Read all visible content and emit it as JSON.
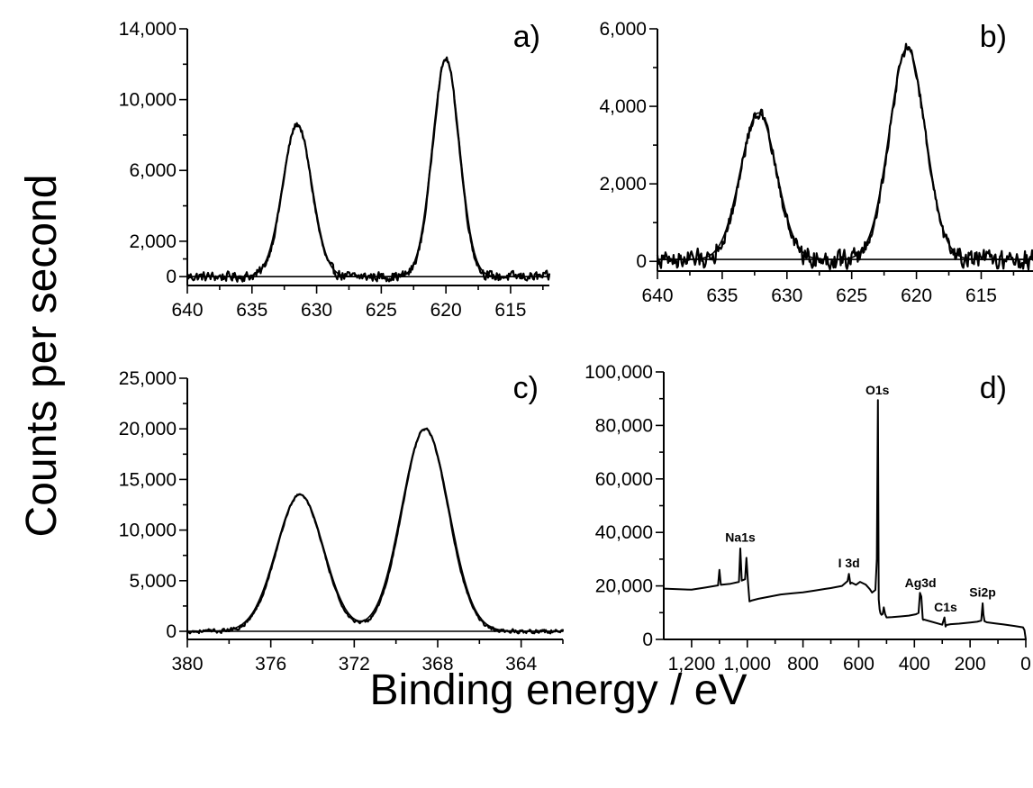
{
  "figure": {
    "ylabel": "Counts per second",
    "xlabel": "Binding energy / eV"
  },
  "colors": {
    "ink": "#000000",
    "background": "#ffffff"
  },
  "chart_data": [
    {
      "type": "line",
      "panel": "a)",
      "xlim": [
        640,
        612
      ],
      "ylim": [
        -500,
        14000
      ],
      "x_ticks": [
        640,
        635,
        630,
        625,
        620,
        615
      ],
      "x_tick_labels": [
        "640",
        "635",
        "630",
        "625",
        "620",
        "615"
      ],
      "y_ticks": [
        0,
        2000,
        6000,
        10000,
        14000
      ],
      "y_tick_labels": [
        "0",
        "2,000",
        "6,000",
        "10,000",
        "14,000"
      ],
      "peaks": [
        {
          "x": 631.5,
          "height": 8600,
          "fwhm": 2.6
        },
        {
          "x": 620.0,
          "height": 12300,
          "fwhm": 2.4
        }
      ],
      "baseline": 0,
      "noise": 350
    },
    {
      "type": "line",
      "panel": "b)",
      "xlim": [
        640,
        611
      ],
      "ylim": [
        -250,
        6000
      ],
      "x_ticks": [
        640,
        635,
        630,
        625,
        620,
        615
      ],
      "x_tick_labels": [
        "640",
        "635",
        "630",
        "625",
        "620",
        "615"
      ],
      "y_ticks": [
        0,
        2000,
        4000,
        6000
      ],
      "y_tick_labels": [
        "0",
        "2,000",
        "4,000",
        "6,000"
      ],
      "peaks": [
        {
          "x": 632.2,
          "height": 3780,
          "fwhm": 3.2
        },
        {
          "x": 620.7,
          "height": 5450,
          "fwhm": 3.2
        }
      ],
      "baseline": 50,
      "noise": 330
    },
    {
      "type": "line",
      "panel": "c)",
      "xlim": [
        380,
        362
      ],
      "ylim": [
        -800,
        25000
      ],
      "x_ticks": [
        380,
        376,
        372,
        368,
        364
      ],
      "x_tick_labels": [
        "380",
        "376",
        "372",
        "368",
        "364"
      ],
      "y_ticks": [
        0,
        5000,
        10000,
        15000,
        20000,
        25000
      ],
      "y_tick_labels": [
        "0",
        "5,000",
        "10,000",
        "15,000",
        "20,000",
        "25,000"
      ],
      "peaks": [
        {
          "x": 374.6,
          "height": 13500,
          "fwhm": 2.6
        },
        {
          "x": 368.6,
          "height": 20000,
          "fwhm": 2.6
        }
      ],
      "baseline": 0,
      "noise": 250
    },
    {
      "type": "line",
      "panel": "d)",
      "xlim": [
        1300,
        0
      ],
      "ylim": [
        0,
        100000
      ],
      "x_ticks": [
        1200,
        1000,
        800,
        600,
        400,
        200,
        0
      ],
      "x_tick_labels": [
        "1,200",
        "1,000",
        "800",
        "600",
        "400",
        "200",
        "0"
      ],
      "y_ticks": [
        0,
        20000,
        40000,
        60000,
        80000,
        100000
      ],
      "y_tick_labels": [
        "0",
        "20,000",
        "40,000",
        "60,000",
        "80,000",
        "100,000"
      ],
      "x": [
        1300,
        1200,
        1150,
        1105,
        1100,
        1095,
        1060,
        1030,
        1025,
        1020,
        1008,
        1003,
        998,
        992,
        985,
        960,
        920,
        880,
        840,
        800,
        760,
        720,
        700,
        660,
        640,
        635,
        630,
        625,
        610,
        595,
        575,
        560,
        552,
        540,
        535,
        531,
        528,
        525,
        522,
        518,
        514,
        510,
        505,
        500,
        480,
        450,
        420,
        395,
        385,
        380,
        375,
        370,
        368,
        365,
        300,
        292,
        288,
        285,
        270,
        240,
        200,
        175,
        160,
        155,
        152,
        148,
        140,
        110,
        80,
        40,
        10,
        5,
        0
      ],
      "y": [
        19000,
        18600,
        19400,
        20200,
        26000,
        20400,
        20800,
        21500,
        34000,
        22000,
        22500,
        30500,
        22000,
        14200,
        14500,
        15200,
        16000,
        16800,
        17200,
        17600,
        18200,
        18900,
        19200,
        20000,
        21800,
        24500,
        20800,
        21200,
        20400,
        21500,
        20500,
        18800,
        17500,
        18500,
        30000,
        89500,
        15000,
        11200,
        9800,
        9200,
        9500,
        12000,
        9500,
        8200,
        8300,
        8600,
        8900,
        9400,
        9900,
        17400,
        16000,
        7600,
        7300,
        7400,
        5500,
        8200,
        4800,
        5400,
        5700,
        5900,
        6300,
        6600,
        7000,
        13500,
        9200,
        6800,
        6400,
        6000,
        5600,
        5000,
        4500,
        3500,
        0
      ],
      "annotations": [
        {
          "text": "Na1s",
          "x": 1025,
          "y": 36500
        },
        {
          "text": "I 3d",
          "x": 635,
          "y": 27000
        },
        {
          "text": "O1s",
          "x": 533,
          "y": 91500
        },
        {
          "text": "Ag3d",
          "x": 378,
          "y": 19500
        },
        {
          "text": "C1s",
          "x": 288,
          "y": 10500
        },
        {
          "text": "Si2p",
          "x": 155,
          "y": 16000
        }
      ]
    }
  ]
}
